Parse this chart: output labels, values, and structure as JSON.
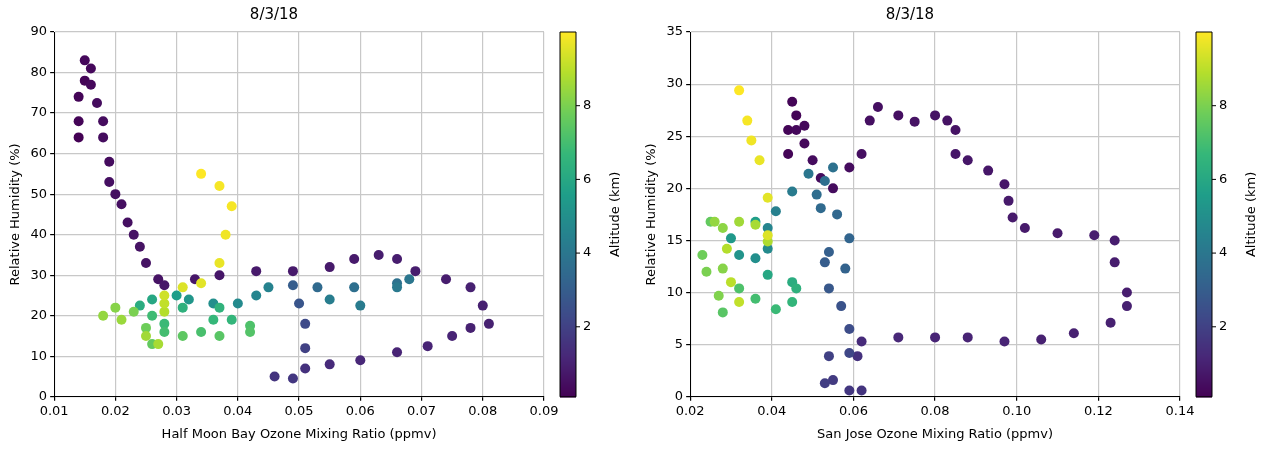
{
  "chart_data": [
    {
      "type": "scatter",
      "title": "8/3/18",
      "xlabel": "Half Moon Bay Ozone Mixing Ratio (ppmv)",
      "ylabel": "Relative Humidity (%)",
      "clabel": "Altitude (km)",
      "grid": true,
      "marker": "circle",
      "xlim": [
        0.01,
        0.09
      ],
      "xticks": [
        0.01,
        0.02,
        0.03,
        0.04,
        0.05,
        0.06,
        0.07,
        0.08,
        0.09
      ],
      "ylim": [
        0,
        90
      ],
      "yticks": [
        0,
        10,
        20,
        30,
        40,
        50,
        60,
        70,
        80,
        90
      ],
      "clim": [
        0.1,
        10
      ],
      "cticks": [
        2,
        4,
        6,
        8
      ],
      "x": [
        0.014,
        0.014,
        0.014,
        0.015,
        0.015,
        0.016,
        0.016,
        0.017,
        0.018,
        0.018,
        0.019,
        0.019,
        0.02,
        0.021,
        0.022,
        0.023,
        0.024,
        0.025,
        0.027,
        0.028,
        0.033,
        0.037,
        0.043,
        0.049,
        0.055,
        0.059,
        0.063,
        0.066,
        0.069,
        0.074,
        0.078,
        0.08,
        0.081,
        0.078,
        0.075,
        0.071,
        0.066,
        0.06,
        0.055,
        0.051,
        0.046,
        0.049,
        0.051,
        0.051,
        0.05,
        0.049,
        0.053,
        0.059,
        0.066,
        0.068,
        0.066,
        0.06,
        0.055,
        0.045,
        0.043,
        0.04,
        0.036,
        0.032,
        0.03,
        0.026,
        0.024,
        0.031,
        0.037,
        0.039,
        0.036,
        0.028,
        0.026,
        0.028,
        0.034,
        0.042,
        0.042,
        0.037,
        0.031,
        0.026,
        0.025,
        0.023,
        0.02,
        0.018,
        0.021,
        0.025,
        0.027,
        0.028,
        0.028,
        0.028,
        0.031,
        0.034,
        0.037,
        0.038,
        0.039,
        0.037,
        0.034
      ],
      "values": [
        64,
        68,
        74,
        78,
        83,
        81,
        77,
        72.5,
        68,
        64,
        58,
        53,
        50,
        47.5,
        43,
        40,
        37,
        33,
        29,
        27.5,
        29,
        30,
        31,
        31,
        32,
        34,
        35,
        34,
        31,
        29,
        27,
        22.5,
        18,
        17,
        15,
        12.5,
        11,
        9,
        8,
        7,
        5,
        4.5,
        12,
        18,
        23,
        27.5,
        27,
        27,
        28,
        29,
        27,
        22.5,
        24,
        27,
        25,
        23,
        23,
        24,
        25,
        24,
        22.5,
        22,
        22,
        19,
        19,
        18,
        20,
        16,
        16,
        17.5,
        16,
        15,
        15,
        13,
        17,
        21,
        22,
        20,
        19,
        15,
        13,
        21,
        23,
        25,
        27,
        28,
        33,
        40,
        47,
        52,
        55
      ],
      "cvalues": [
        0.1,
        0.2,
        0.2,
        0.2,
        0.3,
        0.3,
        0.3,
        0.4,
        0.4,
        0.4,
        0.4,
        0.5,
        0.5,
        0.5,
        0.5,
        0.6,
        0.6,
        0.6,
        0.6,
        0.7,
        0.7,
        0.7,
        0.8,
        0.8,
        0.8,
        0.8,
        0.9,
        0.9,
        0.9,
        0.9,
        1.0,
        1.0,
        1.0,
        1.0,
        1.1,
        1.1,
        1.1,
        1.2,
        1.3,
        1.5,
        1.6,
        1.7,
        2.0,
        2.3,
        2.7,
        3.0,
        3.5,
        3.7,
        3.8,
        4.0,
        4.1,
        4.2,
        4.3,
        4.5,
        4.6,
        4.8,
        5.0,
        5.3,
        5.6,
        6.0,
        6.2,
        6.4,
        6.5,
        6.6,
        6.7,
        6.8,
        6.9,
        7.0,
        7.1,
        7.2,
        7.3,
        7.4,
        7.5,
        7.6,
        7.8,
        8.0,
        8.2,
        8.4,
        8.5,
        8.6,
        8.7,
        8.9,
        9.1,
        9.3,
        9.5,
        9.6,
        9.7,
        9.8,
        9.9,
        9.9,
        10
      ]
    },
    {
      "type": "scatter",
      "title": "8/3/18",
      "xlabel": "San Jose Ozone Mixing Ratio (ppmv)",
      "ylabel": "Relative Humidity (%)",
      "clabel": "Altitude (km)",
      "grid": true,
      "marker": "circle",
      "xlim": [
        0.02,
        0.14
      ],
      "xticks": [
        0.02,
        0.04,
        0.06,
        0.08,
        {
          "value": 0.1,
          "label": "0.10"
        },
        0.12,
        0.14
      ],
      "ylim": [
        0,
        35
      ],
      "yticks": [
        0,
        5,
        10,
        15,
        20,
        25,
        30,
        35
      ],
      "clim": [
        0.1,
        10
      ],
      "cticks": [
        2,
        4,
        6,
        8
      ],
      "x": [
        0.044,
        0.044,
        0.045,
        0.046,
        0.046,
        0.048,
        0.048,
        0.05,
        0.052,
        0.055,
        0.059,
        0.062,
        0.064,
        0.066,
        0.071,
        0.075,
        0.08,
        0.083,
        0.085,
        0.085,
        0.088,
        0.093,
        0.097,
        0.098,
        0.099,
        0.102,
        0.11,
        0.119,
        0.124,
        0.124,
        0.127,
        0.127,
        0.123,
        0.114,
        0.106,
        0.097,
        0.088,
        0.08,
        0.071,
        0.062,
        0.061,
        0.062,
        0.059,
        0.055,
        0.053,
        0.054,
        0.059,
        0.059,
        0.057,
        0.054,
        0.053,
        0.054,
        0.058,
        0.059,
        0.056,
        0.052,
        0.051,
        0.053,
        0.055,
        0.049,
        0.045,
        0.041,
        0.039,
        0.039,
        0.036,
        0.032,
        0.03,
        0.036,
        0.039,
        0.045,
        0.046,
        0.045,
        0.041,
        0.036,
        0.032,
        0.028,
        0.025,
        0.023,
        0.024,
        0.027,
        0.028,
        0.028,
        0.026,
        0.032,
        0.036,
        0.039,
        0.029,
        0.03,
        0.032,
        0.039,
        0.039,
        0.037,
        0.035,
        0.034,
        0.032
      ],
      "values": [
        23.3,
        25.6,
        28.3,
        27,
        25.6,
        26,
        24.3,
        22.7,
        21,
        20,
        22,
        23.3,
        26.5,
        27.8,
        27,
        26.4,
        27,
        26.5,
        25.6,
        23.3,
        22.7,
        21.7,
        20.4,
        18.8,
        17.2,
        16.2,
        15.7,
        15.5,
        15,
        12.9,
        10,
        8.7,
        7.1,
        6.1,
        5.5,
        5.3,
        5.7,
        5.7,
        5.7,
        5.3,
        3.9,
        0.6,
        0.6,
        1.6,
        1.3,
        3.9,
        4.2,
        6.5,
        8.7,
        10.4,
        12.9,
        13.9,
        12.3,
        15.2,
        17.5,
        18.1,
        19.4,
        20.7,
        22,
        21.4,
        19.7,
        17.8,
        16.2,
        14.2,
        13.3,
        13.6,
        15.2,
        16.8,
        11.7,
        11,
        10.4,
        9.1,
        8.4,
        9.4,
        10.4,
        8.1,
        16.8,
        13.6,
        12,
        9.7,
        12.3,
        16.2,
        16.8,
        16.8,
        16.5,
        14.9,
        14.2,
        11,
        9.1,
        15.5,
        19.1,
        22.7,
        24.6,
        26.5,
        29.4
      ],
      "cvalues": [
        0.2,
        0.2,
        0.2,
        0.2,
        0.3,
        0.3,
        0.3,
        0.4,
        0.4,
        0.4,
        0.4,
        0.5,
        0.5,
        0.5,
        0.5,
        0.6,
        0.6,
        0.6,
        0.6,
        0.7,
        0.7,
        0.7,
        0.7,
        0.8,
        0.8,
        0.8,
        0.8,
        0.9,
        0.9,
        0.9,
        0.9,
        1.0,
        1.0,
        1.0,
        1.0,
        1.1,
        1.1,
        1.1,
        1.2,
        1.3,
        1.5,
        1.6,
        1.7,
        1.8,
        1.9,
        2.0,
        2.2,
        2.4,
        2.6,
        2.8,
        3.0,
        3.1,
        3.2,
        3.3,
        3.4,
        3.5,
        3.6,
        3.7,
        3.8,
        4.0,
        4.2,
        4.4,
        4.6,
        4.8,
        5.0,
        5.2,
        5.4,
        5.6,
        6.0,
        6.2,
        6.4,
        6.6,
        6.8,
        7.0,
        7.2,
        7.4,
        7.6,
        7.8,
        8.0,
        8.1,
        8.2,
        8.3,
        8.4,
        8.6,
        8.7,
        8.8,
        8.9,
        9.0,
        9.1,
        9.5,
        9.6,
        9.7,
        9.8,
        9.9,
        10
      ]
    }
  ]
}
